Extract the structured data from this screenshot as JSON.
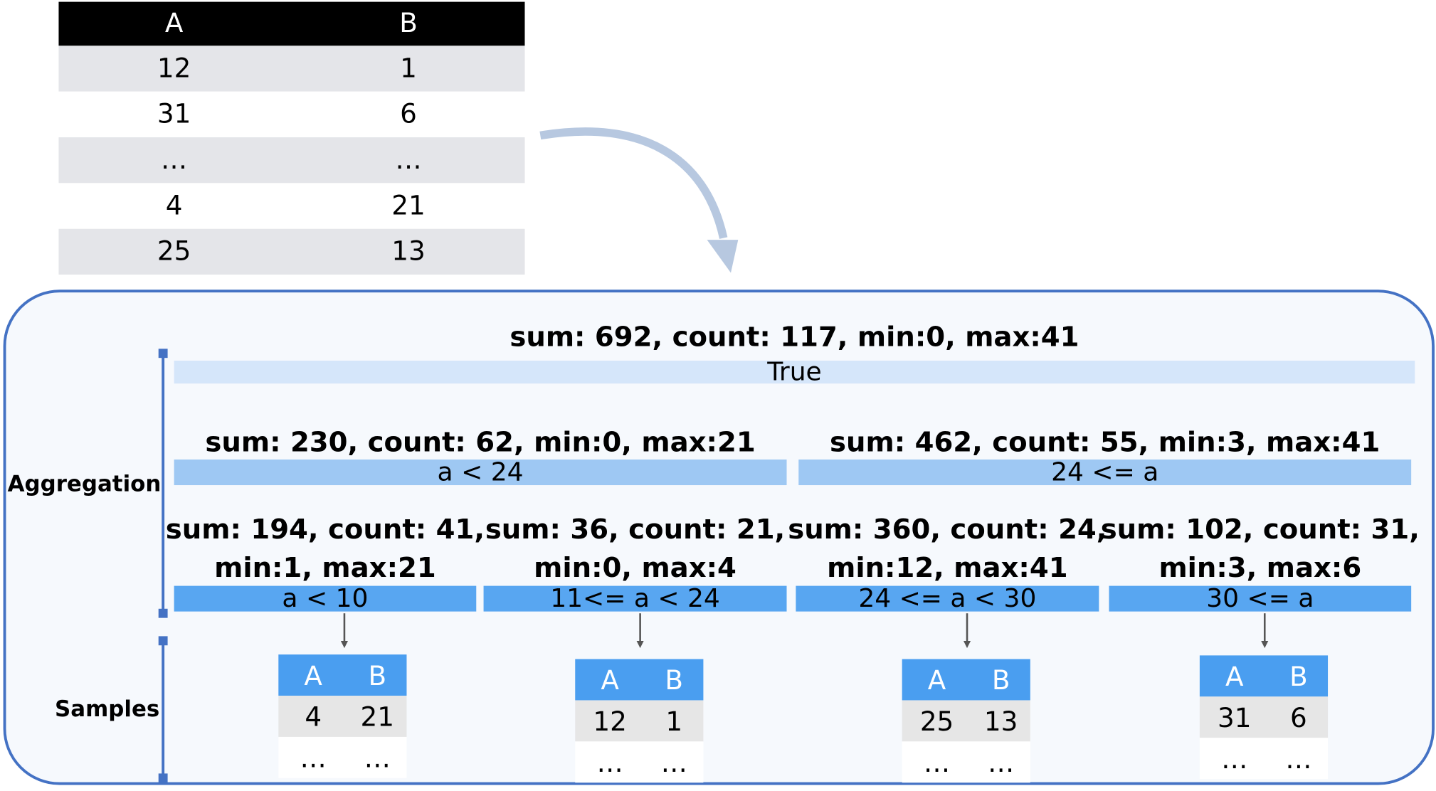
{
  "table": {
    "header": [
      "A",
      "B"
    ],
    "rows": [
      [
        "12",
        "1"
      ],
      [
        "31",
        "6"
      ],
      [
        "…",
        "…"
      ],
      [
        "4",
        "21"
      ],
      [
        "25",
        "13"
      ]
    ]
  },
  "side_labels": {
    "aggregation": "Aggregation",
    "samples": "Samples"
  },
  "tree": {
    "root": {
      "stats": [
        "sum: 692, count: 117, min:0, max:41"
      ],
      "condition": "True"
    },
    "level1": [
      {
        "stats": [
          "sum: 230, count: 62, min:0, max:21"
        ],
        "condition": "a < 24"
      },
      {
        "stats": [
          "sum: 462, count: 55, min:3, max:41"
        ],
        "condition": "24 <= a"
      }
    ],
    "level2": [
      {
        "stats": [
          "sum: 194, count: 41,",
          "min:1, max:21"
        ],
        "condition": "a < 10"
      },
      {
        "stats": [
          "sum: 36, count: 21,",
          "min:0, max:4"
        ],
        "condition": "11<= a < 24"
      },
      {
        "stats": [
          "sum: 360, count: 24,",
          "min:12, max:41"
        ],
        "condition": "24 <= a < 30"
      },
      {
        "stats": [
          "sum: 102, count: 31,",
          "min:3, max:6"
        ],
        "condition": "30 <= a"
      }
    ]
  },
  "samples": [
    {
      "header": [
        "A",
        "B"
      ],
      "rows": [
        [
          "4",
          "21"
        ],
        [
          "…",
          "…"
        ]
      ]
    },
    {
      "header": [
        "A",
        "B"
      ],
      "rows": [
        [
          "12",
          "1"
        ],
        [
          "…",
          "…"
        ]
      ]
    },
    {
      "header": [
        "A",
        "B"
      ],
      "rows": [
        [
          "25",
          "13"
        ],
        [
          "…",
          "…"
        ]
      ]
    },
    {
      "header": [
        "A",
        "B"
      ],
      "rows": [
        [
          "31",
          "6"
        ],
        [
          "…",
          "…"
        ]
      ]
    }
  ]
}
